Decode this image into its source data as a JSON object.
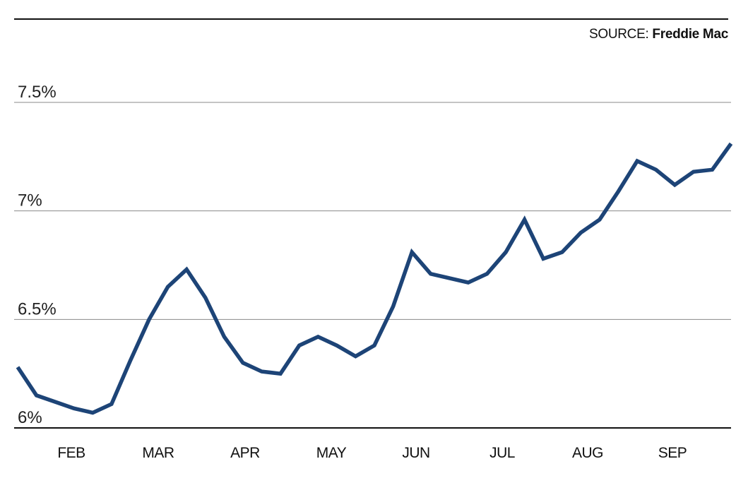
{
  "source": {
    "label": "SOURCE:",
    "name": "Freddie Mac"
  },
  "chart_data": {
    "type": "line",
    "title": "",
    "xlabel": "",
    "ylabel": "",
    "ylim": [
      6.0,
      7.5
    ],
    "y_ticks": [
      {
        "value": 7.5,
        "label": "7.5%"
      },
      {
        "value": 7.0,
        "label": "7%"
      },
      {
        "value": 6.5,
        "label": "6.5%"
      },
      {
        "value": 6.0,
        "label": "6%"
      }
    ],
    "x_ticks": [
      "FEB",
      "MAR",
      "APR",
      "MAY",
      "JUN",
      "JUL",
      "AUG",
      "SEP"
    ],
    "grid": true,
    "line_color": "#1d4477",
    "series": [
      {
        "values": [
          6.28,
          6.15,
          6.12,
          6.09,
          6.07,
          6.11,
          6.31,
          6.5,
          6.65,
          6.73,
          6.6,
          6.42,
          6.3,
          6.26,
          6.25,
          6.38,
          6.42,
          6.38,
          6.33,
          6.38,
          6.56,
          6.81,
          6.71,
          6.69,
          6.67,
          6.71,
          6.81,
          6.96,
          6.78,
          6.81,
          6.9,
          6.96,
          7.09,
          7.23,
          7.19,
          7.12,
          7.18,
          7.19,
          7.31
        ]
      }
    ]
  }
}
